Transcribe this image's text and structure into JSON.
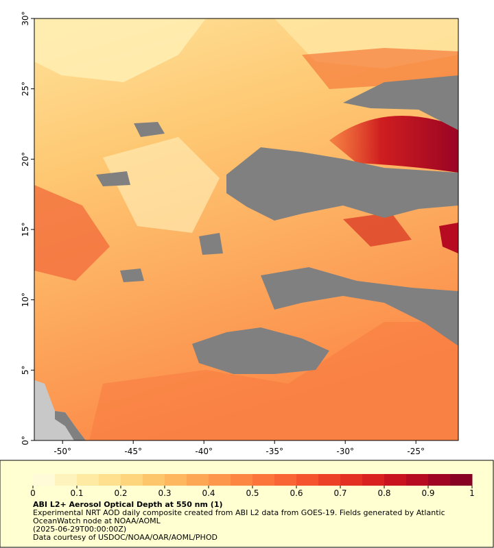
{
  "map": {
    "xlim": [
      -52,
      -22
    ],
    "ylim": [
      0,
      30
    ],
    "xticks": [
      {
        "value": -50,
        "label": "-50°"
      },
      {
        "value": -45,
        "label": "-45°"
      },
      {
        "value": -40,
        "label": "-40°"
      },
      {
        "value": -35,
        "label": "-35°"
      },
      {
        "value": -30,
        "label": "-30°"
      },
      {
        "value": -25,
        "label": "-25°"
      }
    ],
    "yticks": [
      {
        "value": 0,
        "label": "0°"
      },
      {
        "value": 5,
        "label": "5°"
      },
      {
        "value": 10,
        "label": "10°"
      },
      {
        "value": 15,
        "label": "15°"
      },
      {
        "value": 20,
        "label": "20°"
      },
      {
        "value": 25,
        "label": "25°"
      },
      {
        "value": 30,
        "label": "30°"
      }
    ]
  },
  "colorbar": {
    "range": [
      0,
      1
    ],
    "ticks": [
      0,
      0.1,
      0.2,
      0.3,
      0.4,
      0.5,
      0.6,
      0.7,
      0.8,
      0.9,
      1
    ],
    "colors": [
      "#fffad8",
      "#fff3bd",
      "#ffeaa4",
      "#fee08f",
      "#fed47c",
      "#fec66b",
      "#feb75e",
      "#fda755",
      "#fd974b",
      "#fd8642",
      "#fc763b",
      "#f96535",
      "#f4532e",
      "#ed4127",
      "#e43022",
      "#d9211f",
      "#c9141f",
      "#b70b22",
      "#a00623",
      "#880223"
    ]
  },
  "caption": {
    "title": "ABI L2+ Aerosol Optical Depth at 550 nm (1)",
    "description": "Experimental NRT AOD daily composite created from ABI L2 data from GOES-19. Fields generated by Atlantic OceanWatch node at NOAA/AOML",
    "time": "(2025-06-29T00:00:00Z)",
    "credit": "Data courtesy of USDOC/NOAA/OAR/AOML/PHOD"
  }
}
